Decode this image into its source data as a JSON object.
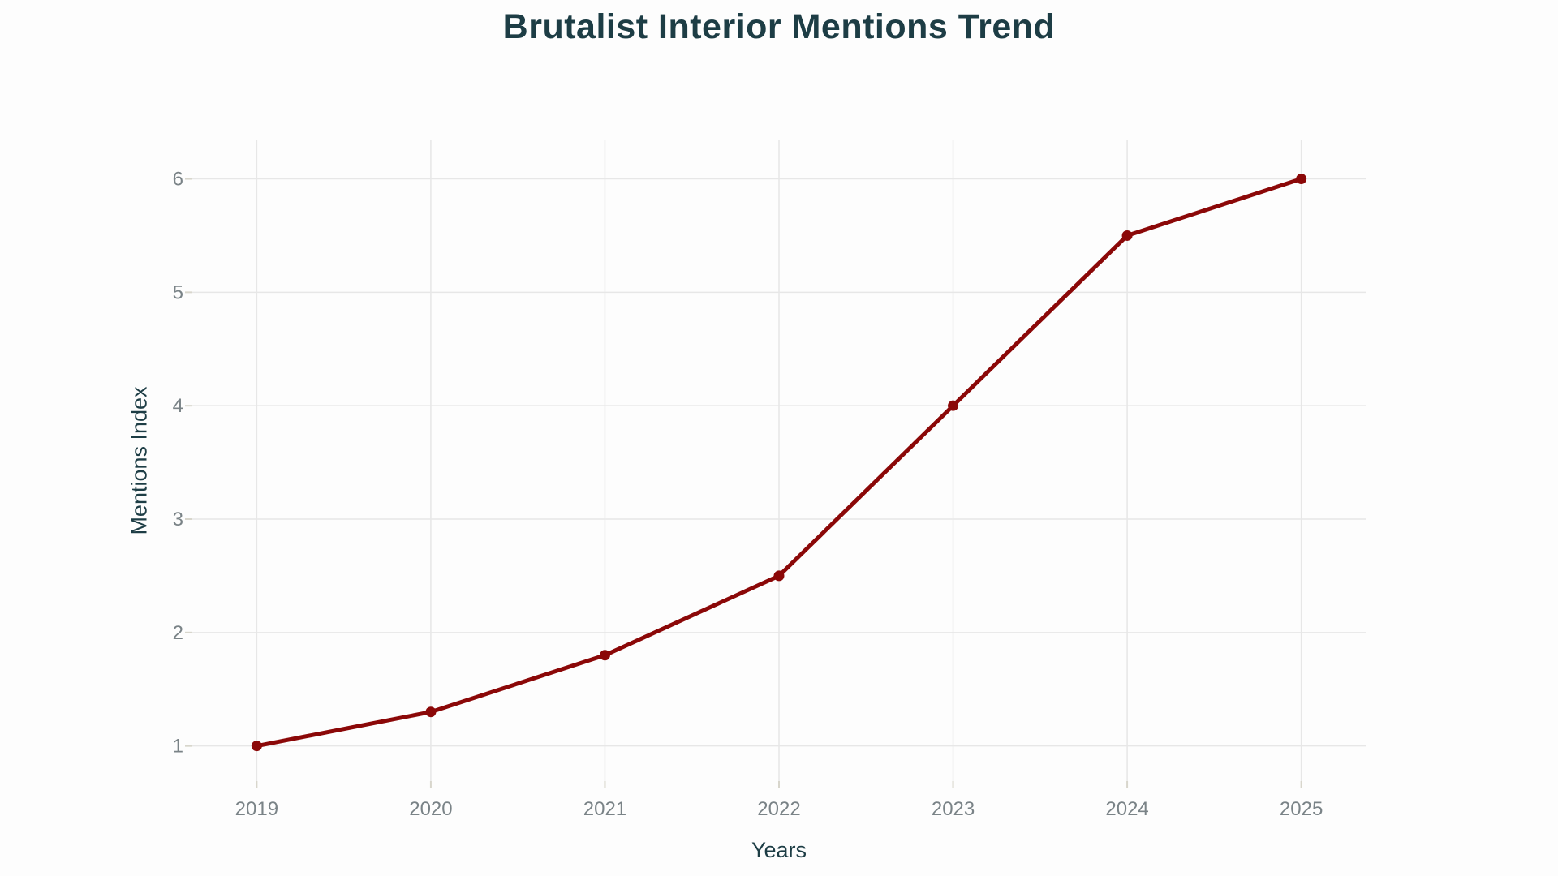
{
  "chart_data": {
    "type": "line",
    "title": "Brutalist Interior Mentions Trend",
    "xlabel": "Years",
    "ylabel": "Mentions Index",
    "x": [
      2019,
      2020,
      2021,
      2022,
      2023,
      2024,
      2025
    ],
    "series": [
      {
        "name": "Mentions Index",
        "values": [
          1.0,
          1.3,
          1.8,
          2.5,
          4.0,
          5.5,
          6.0
        ]
      }
    ],
    "x_ticks": [
      "2019",
      "2020",
      "2021",
      "2022",
      "2023",
      "2024",
      "2025"
    ],
    "y_ticks": [
      "1",
      "2",
      "3",
      "4",
      "5",
      "6"
    ],
    "xlim": [
      2018.63,
      2025.37
    ],
    "ylim": [
      0.69,
      6.34
    ],
    "grid": true,
    "legend_visible": false,
    "colors": {
      "line": "#8b0808",
      "marker": "#8b0808",
      "title_text": "#1d3d45",
      "axis_title_text": "#1d3d45",
      "tick_label_text": "#7a8387",
      "gridline": "#e7e7e7",
      "tick_mark": "#d8d6cc",
      "background": "#fdfdfd"
    }
  }
}
